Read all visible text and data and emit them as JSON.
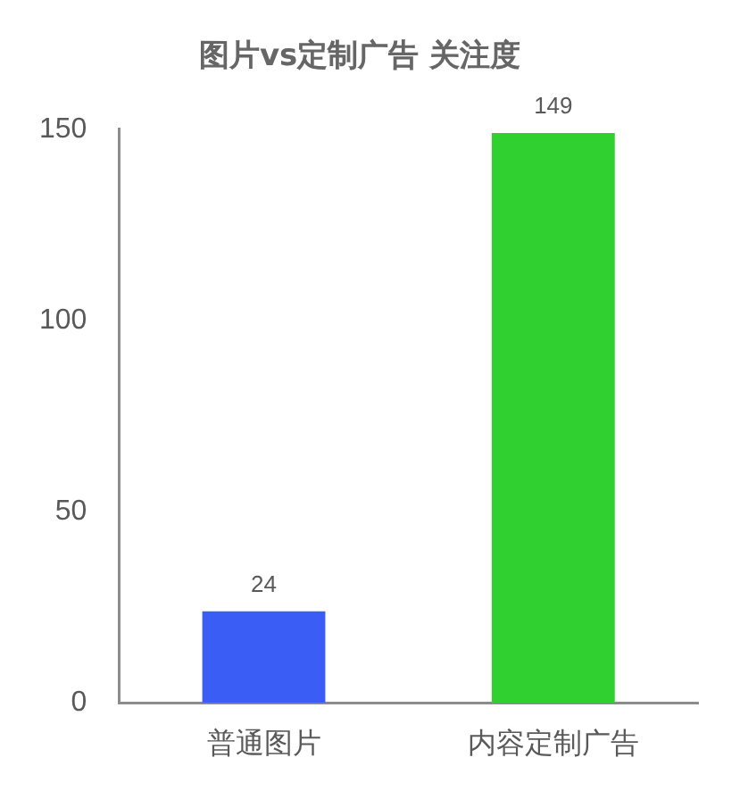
{
  "chart_data": {
    "type": "bar",
    "title": "图片vs定制广告 关注度",
    "categories": [
      "普通图片",
      "内容定制广告"
    ],
    "values": [
      24,
      149
    ],
    "colors": [
      "#3a5ef5",
      "#2fd02f"
    ],
    "ylim": [
      0,
      150
    ],
    "yticks": [
      0,
      50,
      100,
      150
    ],
    "grid": false,
    "legend": false,
    "data_labels": true
  }
}
